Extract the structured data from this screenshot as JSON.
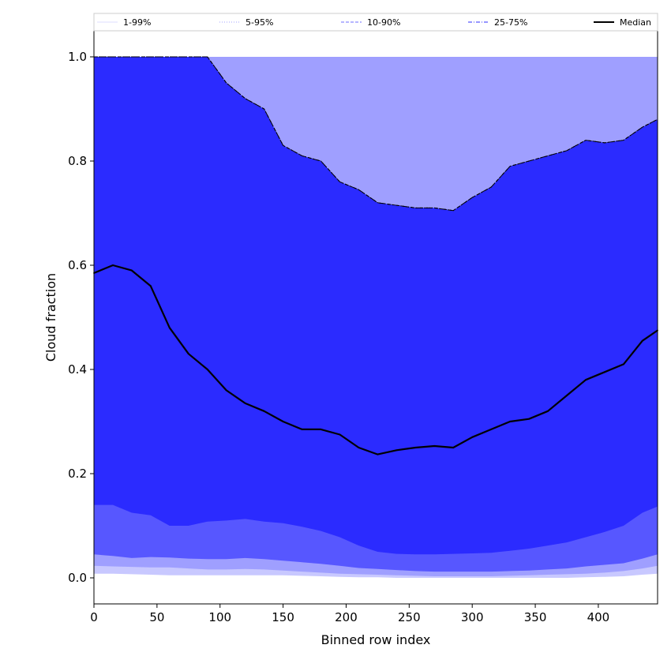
{
  "chart_data": {
    "type": "area",
    "title": "",
    "xlabel": "Binned row index",
    "ylabel": "Cloud fraction",
    "xlim": [
      0,
      447
    ],
    "ylim": [
      -0.05,
      1.05
    ],
    "x_ticks": [
      0,
      50,
      100,
      150,
      200,
      250,
      300,
      350,
      400
    ],
    "y_ticks": [
      0.0,
      0.2,
      0.4,
      0.6,
      0.8,
      1.0
    ],
    "x_tick_labels": [
      "0",
      "50",
      "100",
      "150",
      "200",
      "250",
      "300",
      "350",
      "400"
    ],
    "y_tick_labels": [
      "0.0",
      "0.2",
      "0.4",
      "0.6",
      "0.8",
      "1.0"
    ],
    "grid": false,
    "legend_position": "top, above plot",
    "legend": [
      {
        "label": "1-99%",
        "style": "solid",
        "color": "#e4e4ff"
      },
      {
        "label": "5-95%",
        "style": "dotted",
        "color": "#b4b4ff"
      },
      {
        "label": "10-90%",
        "style": "dashed",
        "color": "#8a8aff"
      },
      {
        "label": "25-75%",
        "style": "dashdot",
        "color": "#5757ff"
      },
      {
        "label": "Median",
        "style": "solid",
        "color": "#000000"
      }
    ],
    "x": [
      0,
      15,
      30,
      45,
      60,
      75,
      90,
      105,
      120,
      135,
      150,
      165,
      180,
      195,
      210,
      225,
      240,
      255,
      270,
      285,
      300,
      315,
      330,
      345,
      360,
      375,
      390,
      405,
      420,
      435,
      447
    ],
    "series": [
      {
        "name": "1-99%",
        "color": "#c8c8ff",
        "lower": [
          0.008,
          0.008,
          0.007,
          0.006,
          0.005,
          0.005,
          0.005,
          0.005,
          0.005,
          0.005,
          0.005,
          0.004,
          0.003,
          0.002,
          0.001,
          0.001,
          0.0,
          0.0,
          0.0,
          0.0,
          0.0,
          0.0,
          0.0,
          0.0,
          0.0,
          0.0,
          0.001,
          0.002,
          0.003,
          0.006,
          0.008
        ],
        "upper": [
          1.0,
          1.0,
          1.0,
          1.0,
          1.0,
          1.0,
          1.0,
          1.0,
          1.0,
          1.0,
          1.0,
          1.0,
          1.0,
          1.0,
          1.0,
          1.0,
          1.0,
          1.0,
          1.0,
          1.0,
          1.0,
          1.0,
          1.0,
          1.0,
          1.0,
          1.0,
          1.0,
          1.0,
          1.0,
          1.0,
          1.0
        ]
      },
      {
        "name": "5-95%",
        "color": "#9f9fff",
        "lower": [
          0.023,
          0.022,
          0.021,
          0.02,
          0.02,
          0.018,
          0.016,
          0.016,
          0.017,
          0.016,
          0.014,
          0.012,
          0.01,
          0.008,
          0.007,
          0.006,
          0.005,
          0.004,
          0.003,
          0.003,
          0.003,
          0.003,
          0.004,
          0.005,
          0.006,
          0.007,
          0.008,
          0.01,
          0.013,
          0.018,
          0.023
        ],
        "upper": [
          1.0,
          1.0,
          1.0,
          1.0,
          1.0,
          1.0,
          1.0,
          1.0,
          1.0,
          1.0,
          1.0,
          1.0,
          1.0,
          1.0,
          1.0,
          1.0,
          1.0,
          1.0,
          1.0,
          1.0,
          1.0,
          1.0,
          1.0,
          1.0,
          1.0,
          1.0,
          1.0,
          1.0,
          1.0,
          1.0,
          1.0
        ]
      },
      {
        "name": "10-90%",
        "color": "#5757ff",
        "lower": [
          0.045,
          0.042,
          0.038,
          0.04,
          0.039,
          0.037,
          0.036,
          0.036,
          0.038,
          0.036,
          0.033,
          0.03,
          0.027,
          0.023,
          0.019,
          0.017,
          0.015,
          0.013,
          0.012,
          0.012,
          0.012,
          0.012,
          0.013,
          0.014,
          0.016,
          0.018,
          0.022,
          0.025,
          0.028,
          0.037,
          0.045
        ],
        "upper": [
          1.0,
          1.0,
          1.0,
          1.0,
          1.0,
          1.0,
          1.0,
          0.95,
          0.92,
          0.9,
          0.83,
          0.81,
          0.8,
          0.76,
          0.745,
          0.72,
          0.715,
          0.71,
          0.71,
          0.705,
          0.73,
          0.75,
          0.79,
          0.8,
          0.81,
          0.82,
          0.84,
          0.835,
          0.84,
          0.865,
          0.88
        ]
      },
      {
        "name": "25-75%",
        "color": "#2b2bff",
        "lower": [
          0.14,
          0.14,
          0.125,
          0.12,
          0.1,
          0.1,
          0.108,
          0.11,
          0.113,
          0.108,
          0.105,
          0.098,
          0.09,
          0.078,
          0.062,
          0.05,
          0.046,
          0.045,
          0.045,
          0.046,
          0.047,
          0.048,
          0.052,
          0.056,
          0.062,
          0.068,
          0.078,
          0.088,
          0.1,
          0.125,
          0.137
        ],
        "upper": [
          1.0,
          1.0,
          1.0,
          1.0,
          1.0,
          1.0,
          1.0,
          0.95,
          0.92,
          0.9,
          0.83,
          0.81,
          0.8,
          0.76,
          0.745,
          0.72,
          0.715,
          0.71,
          0.71,
          0.705,
          0.73,
          0.75,
          0.79,
          0.8,
          0.81,
          0.82,
          0.84,
          0.835,
          0.84,
          0.865,
          0.88
        ]
      },
      {
        "name": "Median",
        "color": "#000000",
        "values": [
          0.585,
          0.6,
          0.59,
          0.56,
          0.48,
          0.43,
          0.4,
          0.36,
          0.335,
          0.32,
          0.3,
          0.285,
          0.285,
          0.275,
          0.25,
          0.237,
          0.245,
          0.25,
          0.253,
          0.25,
          0.27,
          0.285,
          0.3,
          0.305,
          0.32,
          0.35,
          0.38,
          0.395,
          0.41,
          0.455,
          0.475
        ]
      }
    ]
  }
}
